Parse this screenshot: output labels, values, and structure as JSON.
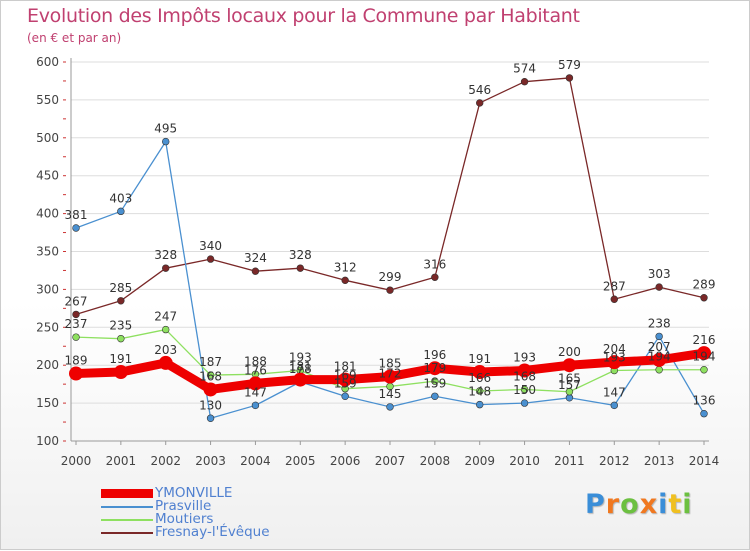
{
  "chart_data": {
    "type": "line",
    "title": "Evolution des Impôts locaux pour la Commune par Habitant",
    "subtitle": "(en € et par an)",
    "xlabel": "",
    "ylabel": "",
    "x": [
      "2000",
      "2001",
      "2002",
      "2003",
      "2004",
      "2005",
      "2006",
      "2007",
      "2008",
      "2009",
      "2010",
      "2011",
      "2012",
      "2013",
      "2014"
    ],
    "ylim": [
      100,
      600
    ],
    "yticks": [
      "100",
      "150",
      "200",
      "250",
      "300",
      "350",
      "400",
      "450",
      "500",
      "550",
      "600"
    ],
    "grid": true,
    "legend_position": "bottom-left",
    "series": [
      {
        "name": "YMONVILLE",
        "color": "#ee0000",
        "values": [
          189,
          191,
          203,
          168,
          176,
          181,
          181,
          185,
          196,
          191,
          193,
          200,
          204,
          207,
          216
        ],
        "labels": [
          "189",
          "191",
          "203",
          "168",
          "176",
          "181",
          "181",
          "185",
          "196",
          "191",
          "193",
          "200",
          "204",
          "207",
          "216"
        ]
      },
      {
        "name": "Prasville",
        "color": "#4a90d0",
        "values": [
          381,
          403,
          495,
          130,
          147,
          178,
          159,
          145,
          159,
          148,
          150,
          157,
          147,
          238,
          136
        ],
        "labels": [
          "381",
          "403",
          "495",
          "130",
          "147",
          "178",
          "159",
          "145",
          "159",
          "148",
          "150",
          "157",
          "147",
          "238",
          "136"
        ]
      },
      {
        "name": "Moutiers",
        "color": "#8ee060",
        "values": [
          237,
          235,
          247,
          187,
          188,
          193,
          169,
          172,
          179,
          166,
          168,
          165,
          193,
          194,
          194
        ],
        "labels": [
          "237",
          "235",
          "247",
          "187",
          "188",
          "193",
          "169",
          "172",
          "179",
          "166",
          "168",
          "165",
          "193",
          "194",
          "194"
        ]
      },
      {
        "name": "Fresnay-l'Évêque",
        "color": "#7a2828",
        "values": [
          267,
          285,
          328,
          340,
          324,
          328,
          312,
          299,
          316,
          546,
          574,
          579,
          287,
          303,
          289
        ],
        "labels": [
          "267",
          "285",
          "328",
          "340",
          "324",
          "328",
          "312",
          "299",
          "316",
          "546",
          "574",
          "579",
          "287",
          "303",
          "289"
        ]
      }
    ]
  },
  "logo": {
    "letters": [
      "P",
      "r",
      "o",
      "x",
      "i",
      "t",
      "i"
    ],
    "colors": [
      "#3a8ed8",
      "#f07820",
      "#6cc040",
      "#f07820",
      "#3a8ed8",
      "#f0c020",
      "#6cc040"
    ]
  }
}
